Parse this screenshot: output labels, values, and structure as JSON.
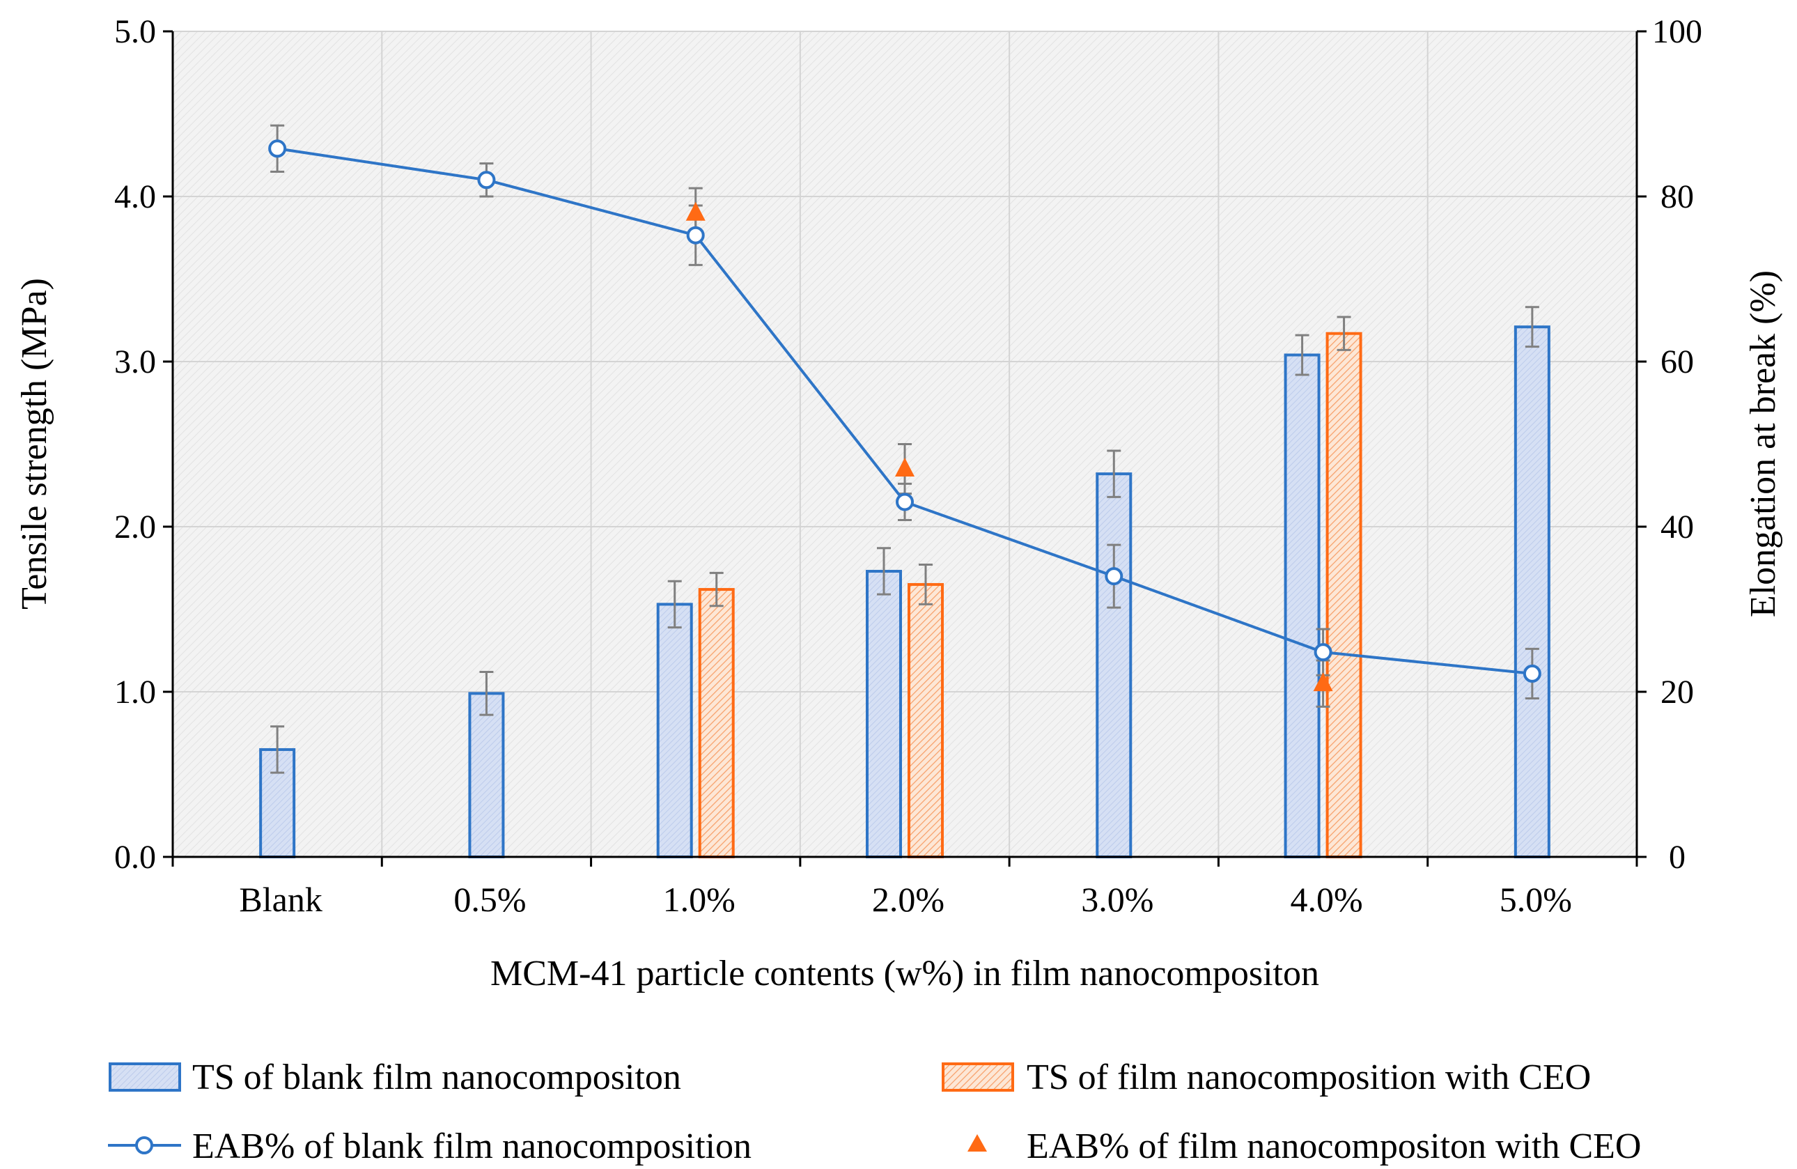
{
  "chart_data": {
    "type": "bar",
    "title": "",
    "categories": [
      "Blank",
      "0.5%",
      "1.0%",
      "2.0%",
      "3.0%",
      "4.0%",
      "5.0%"
    ],
    "xlabel": "MCM-41 particle contents (w%) in film nanocompositon",
    "ylabel": "Tensile strength (MPa)",
    "y2label": "Elongation at break (%)",
    "ylim": [
      0,
      5
    ],
    "y2lim": [
      0,
      100
    ],
    "yticks": [
      "0.0",
      "1.0",
      "2.0",
      "3.0",
      "4.0",
      "5.0"
    ],
    "y2ticks": [
      "0",
      "20",
      "40",
      "60",
      "80",
      "100"
    ],
    "grid": true,
    "legend_position": "bottom",
    "series": [
      {
        "name": "TS of blank film nanocompositon",
        "kind": "bar",
        "axis": "left",
        "color": "#2e75c7",
        "fill": "#cfdaf1",
        "values": [
          0.65,
          0.99,
          1.53,
          1.73,
          2.32,
          3.04,
          3.21
        ],
        "errors": [
          0.14,
          0.13,
          0.14,
          0.14,
          0.14,
          0.12,
          0.12
        ]
      },
      {
        "name": "TS of film nanocomposition with CEO",
        "kind": "bar",
        "axis": "left",
        "color": "#ff6a14",
        "fill": "#fbe1cf",
        "values": [
          null,
          null,
          1.62,
          1.65,
          null,
          3.17,
          null
        ],
        "errors": [
          null,
          null,
          0.1,
          0.12,
          null,
          0.1,
          null
        ]
      },
      {
        "name": "EAB% of blank film nanocomposition",
        "kind": "line",
        "axis": "right",
        "color": "#2e75c7",
        "values": [
          85.8,
          82.0,
          75.3,
          43.0,
          34.0,
          24.8,
          22.2
        ],
        "errors": [
          2.8,
          2.0,
          3.6,
          2.2,
          3.8,
          2.8,
          3.0
        ]
      },
      {
        "name": "EAB% of film nanocompositon with CEO",
        "kind": "scatter",
        "axis": "right",
        "color": "#ff6a14",
        "values": [
          null,
          null,
          78.0,
          47.0,
          null,
          21.0,
          null
        ],
        "errors": [
          null,
          null,
          3.0,
          3.0,
          null,
          2.8,
          null
        ]
      }
    ]
  }
}
